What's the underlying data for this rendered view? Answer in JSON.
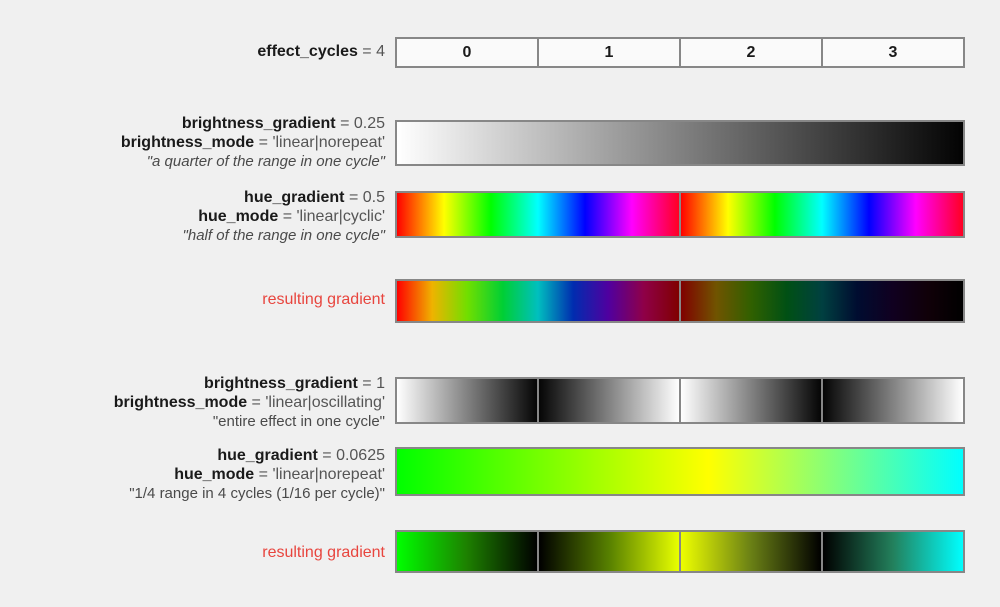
{
  "colors": {
    "background": "#f0f0f0",
    "bar_border": "#878787",
    "cell_bg": "#fafafa",
    "property_name": "#1a1a1a",
    "property_value": "#555555",
    "quote": "#4a4a4a",
    "result_label": "#e8453e"
  },
  "rows": {
    "cycles": {
      "prop_name": "effect_cycles",
      "prop_value": " = 4",
      "cells": [
        "0",
        "1",
        "2",
        "3"
      ]
    },
    "brightness1": {
      "prop1_name": "brightness_gradient",
      "prop1_value": " = 0.25",
      "prop2_name": "brightness_mode",
      "prop2_value": " = 'linear|norepeat'",
      "quote": "\"a quarter of the range in one cycle\"",
      "bar": {
        "segments": [
          {
            "stops": [
              "#ffffff 0%",
              "#030303 100%"
            ]
          }
        ]
      }
    },
    "hue1": {
      "prop1_name": "hue_gradient",
      "prop1_value": " = 0.5",
      "prop2_name": "hue_mode",
      "prop2_value": " = 'linear|cyclic'",
      "quote": "\"half of the range in one cycle\"",
      "bar": {
        "segments": [
          {
            "stops": [
              "#ff0000 0%",
              "#ffff00 16.7%",
              "#00ff00 33.3%",
              "#00ffff 50%",
              "#0000ff 66.7%",
              "#ff00ff 83.3%",
              "#ff0022 100%"
            ]
          },
          {
            "stops": [
              "#ff0000 0%",
              "#ffff00 16.7%",
              "#00ff00 33.3%",
              "#00ffff 50%",
              "#0000ff 66.7%",
              "#ff00ff 83.3%",
              "#ff0022 100%"
            ]
          }
        ]
      }
    },
    "result1": {
      "label": "resulting gradient",
      "bar": {
        "segments": [
          {
            "stops": [
              "#ff0000 0%",
              "#efb300 12.5%",
              "#70df00 25%",
              "#00cf34 37.5%",
              "#00bfbf 50%",
              "#002caf 62.5%",
              "#50009f 75%",
              "#8f0048 87.5%",
              "#800000 100%"
            ]
          },
          {
            "stops": [
              "#800000 0%",
              "#705400 12.5%",
              "#306000 25%",
              "#005014 37.5%",
              "#004040 50%",
              "#000c30 62.5%",
              "#100020 75%",
              "#100008 87.5%",
              "#000000 100%"
            ]
          }
        ]
      }
    },
    "brightness2": {
      "prop1_name": "brightness_gradient",
      "prop1_value": " = 1",
      "prop2_name": "brightness_mode",
      "prop2_value": " = 'linear|oscillating'",
      "quote": "\"entire effect in one cycle\"",
      "bar": {
        "segments": [
          {
            "stops": [
              "#ffffff 0%",
              "#050505 100%"
            ]
          },
          {
            "stops": [
              "#050505 0%",
              "#ffffff 100%"
            ]
          },
          {
            "stops": [
              "#ffffff 0%",
              "#050505 100%"
            ]
          },
          {
            "stops": [
              "#050505 0%",
              "#ffffff 100%"
            ]
          }
        ]
      }
    },
    "hue2": {
      "prop1_name": "hue_gradient",
      "prop1_value": " = 0.0625",
      "prop2_name": "hue_mode",
      "prop2_value": " = 'linear|norepeat'",
      "quote": "\"1/4 range in 4 cycles (1/16 per cycle)\"",
      "bar": {
        "segments": [
          {
            "stops": [
              "#00ff00 0%",
              "#ffff00 55%",
              "#00ffff 100%"
            ]
          }
        ]
      }
    },
    "result2": {
      "label": "resulting gradient",
      "bar": {
        "segments": [
          {
            "stops": [
              "#00ff00 0%",
              "#1d8000 50%",
              "#000000 100%"
            ]
          },
          {
            "stops": [
              "#000000 0%",
              "#578000 50%",
              "#e8ff00 100%"
            ]
          },
          {
            "stops": [
              "#eeff00 0%",
              "#6a8015 50%",
              "#000000 100%"
            ]
          },
          {
            "stops": [
              "#000000 0%",
              "#23805c 50%",
              "#00ffff 100%"
            ]
          }
        ]
      }
    }
  }
}
